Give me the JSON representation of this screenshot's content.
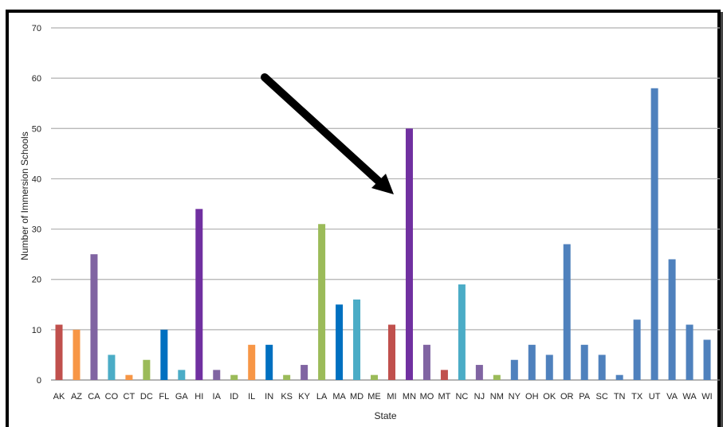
{
  "chart_data": {
    "type": "bar",
    "xlabel": "State",
    "ylabel": "Number of Immersion Schools",
    "ylim": [
      0,
      70
    ],
    "yticks": [
      0,
      10,
      20,
      30,
      40,
      50,
      60,
      70
    ],
    "grid": true,
    "legend": "none",
    "annotation": "arrow pointing to MN bar",
    "categories": [
      "AK",
      "AZ",
      "CA",
      "CO",
      "CT",
      "DC",
      "FL",
      "GA",
      "HI",
      "IA",
      "ID",
      "IL",
      "IN",
      "KS",
      "KY",
      "LA",
      "MA",
      "MD",
      "ME",
      "MI",
      "MN",
      "MO",
      "MT",
      "NC",
      "NJ",
      "NM",
      "NY",
      "OH",
      "OK",
      "OR",
      "PA",
      "SC",
      "TN",
      "TX",
      "UT",
      "VA",
      "WA",
      "WI"
    ],
    "values": [
      11,
      10,
      25,
      5,
      1,
      4,
      10,
      2,
      34,
      2,
      1,
      7,
      7,
      1,
      3,
      31,
      15,
      16,
      1,
      11,
      50,
      7,
      2,
      19,
      3,
      1,
      4,
      7,
      5,
      27,
      7,
      5,
      1,
      12,
      58,
      24,
      11,
      8
    ],
    "colors": [
      "#c0504d",
      "#f79646",
      "#8064a2",
      "#4bacc6",
      "#f79646",
      "#9bbb59",
      "#0070c0",
      "#4bacc6",
      "#7030a0",
      "#8064a2",
      "#9bbb59",
      "#f79646",
      "#0070c0",
      "#9bbb59",
      "#8064a2",
      "#9bbb59",
      "#0070c0",
      "#4bacc6",
      "#9bbb59",
      "#c0504d",
      "#7030a0",
      "#8064a2",
      "#c0504d",
      "#4bacc6",
      "#8064a2",
      "#9bbb59",
      "#4f81bd",
      "#4f81bd",
      "#4f81bd",
      "#4f81bd",
      "#4f81bd",
      "#4f81bd",
      "#4f81bd",
      "#4f81bd",
      "#4f81bd",
      "#4f81bd",
      "#4f81bd",
      "#4f81bd"
    ]
  }
}
